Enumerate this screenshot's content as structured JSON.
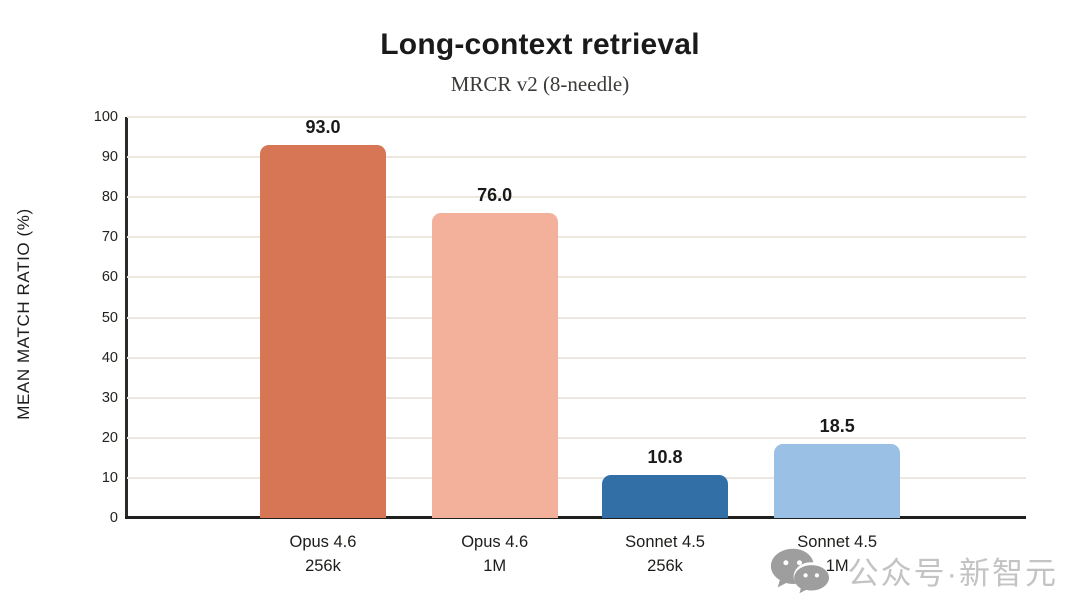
{
  "chart_data": {
    "type": "bar",
    "title": "Long-context retrieval",
    "subtitle": "MRCR v2 (8-needle)",
    "ylabel": "MEAN MATCH RATIO (%)",
    "xlabel": "",
    "ylim": [
      0,
      100
    ],
    "yticks": [
      0,
      10,
      20,
      30,
      40,
      50,
      60,
      70,
      80,
      90,
      100
    ],
    "grid": "horizontal",
    "legend": "none",
    "categories": [
      "Opus 4.6 256k",
      "Opus 4.6 1M",
      "Sonnet 4.5 256k",
      "Sonnet 4.5 1M"
    ],
    "category_lines": [
      [
        "Opus 4.6",
        "256k"
      ],
      [
        "Opus 4.6",
        "1M"
      ],
      [
        "Sonnet 4.5",
        "256k"
      ],
      [
        "Sonnet 4.5",
        "1M"
      ]
    ],
    "values": [
      93.0,
      76.0,
      10.8,
      18.5
    ],
    "value_labels": [
      "93.0",
      "76.0",
      "10.8",
      "18.5"
    ],
    "bar_colors": [
      "#D67654",
      "#F3B09B",
      "#336FA7",
      "#9AC0E5"
    ],
    "bar_centers_pct": [
      21.8,
      40.9,
      59.85,
      79.0
    ],
    "bar_width_pct": 14.0
  },
  "style_colors": {
    "gridline": "#ECE8DF",
    "axis": "#1f1f1d",
    "text": "#1a1a1a"
  },
  "watermark": {
    "icon": "wechat-icon",
    "icon_color": "#9e9e9e",
    "text": "公众号·新智元",
    "text_color": "#c3c3c3"
  }
}
